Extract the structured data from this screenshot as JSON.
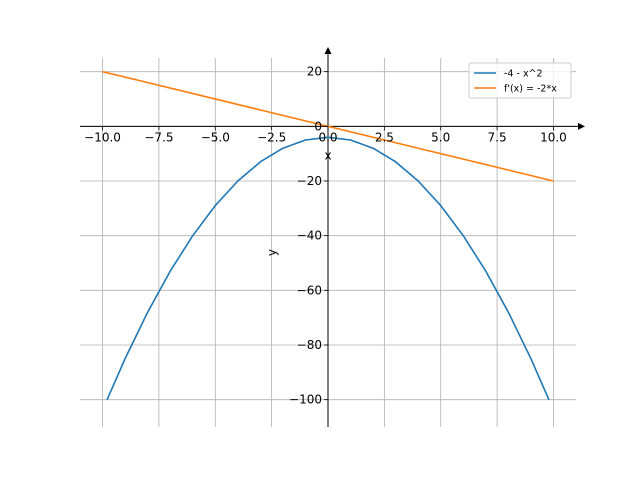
{
  "chart_data": {
    "type": "line",
    "title": "",
    "xlabel": "x",
    "ylabel": "y",
    "xlim": [
      -11,
      11
    ],
    "ylim": [
      -110,
      25
    ],
    "grid": true,
    "legend_position": "top-right",
    "x_ticks": [
      -10,
      -7.5,
      -5,
      -2.5,
      0,
      2.5,
      5,
      7.5,
      10
    ],
    "x_tick_labels": [
      "−10.0",
      "−7.5",
      "−5.0",
      "−2.5",
      "0.0",
      "2.5",
      "5.0",
      "7.5",
      "10.0"
    ],
    "y_ticks": [
      20,
      0,
      -20,
      -40,
      -60,
      -80,
      -100
    ],
    "y_tick_labels": [
      "20",
      "0",
      "−20",
      "−40",
      "−60",
      "−80",
      "−100"
    ],
    "series": [
      {
        "name": "-4 - x^2",
        "color": "#1f77b4",
        "x": [
          -9.8,
          -9,
          -8,
          -7,
          -6,
          -5,
          -4,
          -3,
          -2,
          -1,
          0,
          1,
          2,
          3,
          4,
          5,
          6,
          7,
          8,
          9,
          9.8
        ],
        "y": [
          -100.04,
          -85,
          -68,
          -53,
          -40,
          -29,
          -20,
          -13,
          -8,
          -5,
          -4,
          -5,
          -8,
          -13,
          -20,
          -29,
          -40,
          -53,
          -68,
          -85,
          -100.04
        ]
      },
      {
        "name": "f'(x) = -2*x",
        "color": "#ff7f0e",
        "x": [
          -10,
          10
        ],
        "y": [
          20,
          -20
        ]
      }
    ]
  }
}
